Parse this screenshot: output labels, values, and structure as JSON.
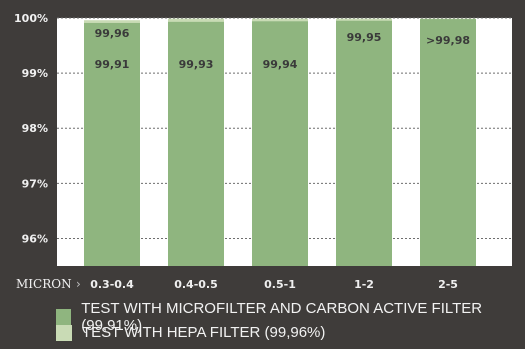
{
  "chart_data": {
    "type": "bar",
    "categories": [
      "0.3-0.4",
      "0.4-0.5",
      "0.5-1",
      "1-2",
      "2-5"
    ],
    "series": [
      {
        "name": "TEST WITH MICROFILTER AND CARBON ACTIVE FILTER (99,91%)",
        "values": [
          99.91,
          99.93,
          99.94,
          99.95,
          99.98
        ],
        "labels": [
          "99,91",
          "99,93",
          "99,94",
          "99,95",
          ">99,98"
        ],
        "color": "#8fb57f"
      },
      {
        "name": "TEST WITH HEPA FILTER (99,96%)",
        "values": [
          99.96,
          99.99,
          99.99,
          99.99,
          99.99
        ],
        "labels": [
          "99,96",
          "",
          "",
          "",
          ""
        ],
        "color": "#c9dbb5"
      }
    ],
    "yticks": [
      96,
      97,
      98,
      99,
      100
    ],
    "ytick_labels": [
      "96%",
      "97%",
      "98%",
      "99%",
      "100%"
    ],
    "ylim": [
      95.5,
      100
    ],
    "xlabel": "MICRON",
    "xlabel_arrow": "›",
    "grid": true,
    "legend_position": "bottom"
  }
}
